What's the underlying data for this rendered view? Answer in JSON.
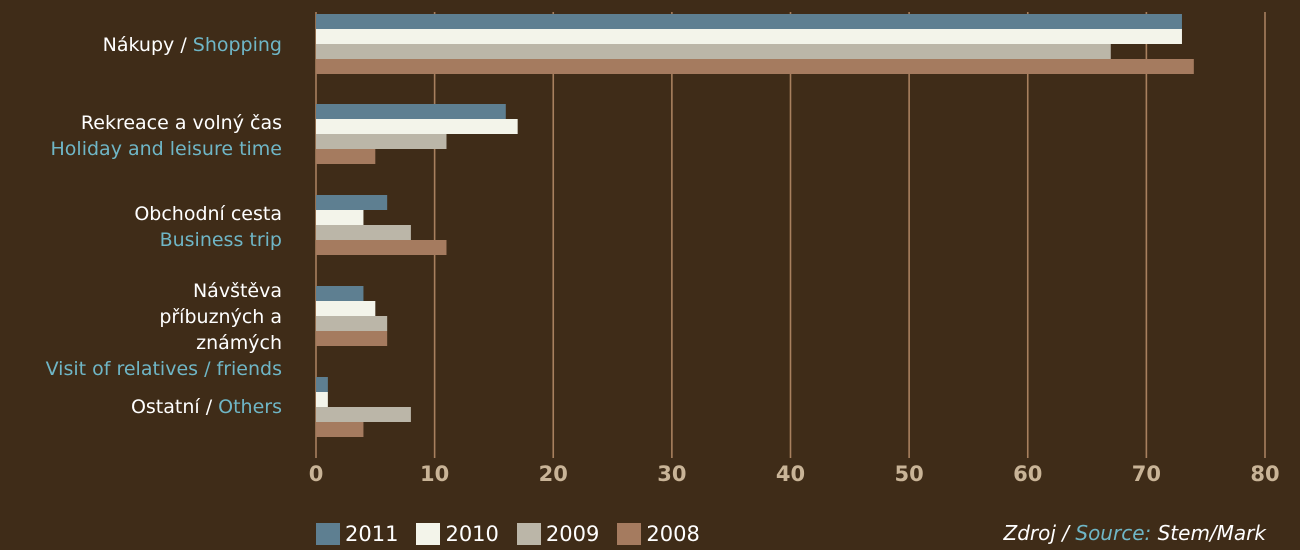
{
  "colors": {
    "background": "#3f2c18",
    "grid": "#a8805e",
    "tick_label": "#c9b497",
    "english_text": "#6fb6c6",
    "czech_text": "#ffffff"
  },
  "chart_data": {
    "type": "bar",
    "orientation": "horizontal",
    "categories": [
      {
        "cs": "Nákupy / ",
        "en": "Shopping"
      },
      {
        "cs": "Rekreace a volný čas",
        "en": "Holiday and leisure time"
      },
      {
        "cs": "Obchodní cesta",
        "en": "Business trip"
      },
      {
        "cs": "Návštěva příbuzných a známých",
        "en": "Visit of relatives / friends"
      },
      {
        "cs": "Ostatní / ",
        "en": "Others"
      }
    ],
    "series": [
      {
        "name": "2011",
        "color": "#5e7f91",
        "values": [
          73,
          16,
          6,
          4,
          1
        ]
      },
      {
        "name": "2010",
        "color": "#f3f4ea",
        "values": [
          73,
          17,
          4,
          5,
          1
        ]
      },
      {
        "name": "2009",
        "color": "#bbb6a8",
        "values": [
          67,
          11,
          8,
          6,
          8
        ]
      },
      {
        "name": "2008",
        "color": "#a57b5f",
        "values": [
          74,
          5,
          11,
          6,
          4
        ]
      }
    ],
    "xlim": [
      0,
      80
    ],
    "ticks": [
      "0",
      "10",
      "20",
      "30",
      "40",
      "50",
      "60",
      "70",
      "80"
    ],
    "grid": true,
    "legend_position": "bottom-left"
  },
  "source": {
    "cs": "Zdroj / ",
    "en": "Source:",
    "name": " Stem/Mark"
  }
}
